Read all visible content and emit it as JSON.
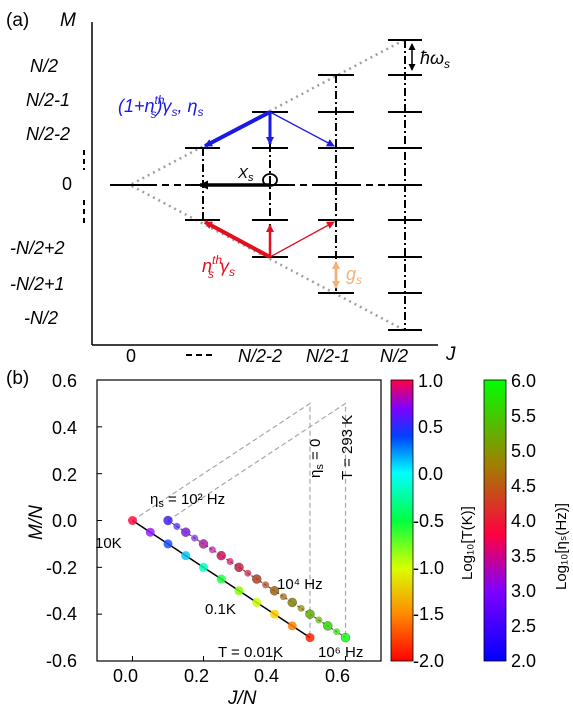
{
  "panel_a": {
    "label": "(a)",
    "y_axis_label": "M",
    "x_axis_label": "J",
    "y_tick_labels": [
      "N/2",
      "N/2-1",
      "N/2-2",
      "0",
      "-N/2+2",
      "-N/2+1",
      "-N/2"
    ],
    "x_tick_labels": [
      "0",
      "N/2-2",
      "N/2-1",
      "N/2"
    ],
    "annotations": {
      "hbar_omega": "ħω",
      "hbar_omega_sub": "s",
      "decay_up_prefix": "(1+n",
      "decay_up_sup": "th",
      "decay_up_sub": "s",
      "decay_up_suffix": ")γ",
      "decay_up_sub2": "s",
      "eta": ", η",
      "eta_sub": "s",
      "chi": "X",
      "chi_sub": "s",
      "pump_prefix": "n",
      "pump_sup": "th",
      "pump_sub": "s",
      "pump_suffix": "γ",
      "pump_sub2": "s",
      "g": "g",
      "g_sub": "s"
    },
    "colors": {
      "blue": "#1a1ae6",
      "red": "#e0101e",
      "orange": "#f2b27a",
      "dotted": "#a0a0a0"
    }
  },
  "panel_b": {
    "label": "(b)",
    "xlabel": "J/N",
    "ylabel": "M/N",
    "x_ticks": [
      "0.0",
      "0.2",
      "0.4",
      "0.6"
    ],
    "y_ticks": [
      "0.6",
      "0.4",
      "0.2",
      "0.0",
      "-0.2",
      "-0.4",
      "-0.6"
    ],
    "annotations": {
      "eta_label": "η",
      "eta_sub": "s",
      "eta_value": " = 10² Hz",
      "t10k": "10K",
      "t01k": "0.1K",
      "t001k": "T = 0.01K",
      "e4": "10⁴ Hz",
      "e6": "10⁶ Hz",
      "eta0": "η",
      "eta0_sub": "s",
      "eta0_suffix": " = 0",
      "t293": "T = 293 K"
    },
    "colorbar_T": {
      "label": "Log₁₀[T(K)]",
      "ticks": [
        "1.0",
        "0.5",
        "0.0",
        "-0.5",
        "-1.0",
        "-1.5",
        "-2.0"
      ]
    },
    "colorbar_eta": {
      "label": "Log₁₀[ηₛ(Hz)]",
      "ticks": [
        "6.0",
        "5.5",
        "5.0",
        "4.5",
        "4.0",
        "3.5",
        "3.0",
        "2.5",
        "2.0"
      ]
    }
  },
  "chart_data": {
    "type": "scatter",
    "xlabel": "J/N",
    "ylabel": "M/N",
    "xlim": [
      -0.1,
      0.7
    ],
    "ylim": [
      -0.6,
      0.6
    ],
    "series": [
      {
        "x": [
          0.0,
          0.05,
          0.1,
          0.15,
          0.2,
          0.25,
          0.3,
          0.35,
          0.4,
          0.45,
          0.5
        ],
        "y": [
          0.0,
          -0.05,
          -0.1,
          -0.15,
          -0.2,
          -0.25,
          -0.3,
          -0.35,
          -0.4,
          -0.45,
          -0.5
        ]
      },
      {
        "x": [
          0.1,
          0.15,
          0.2,
          0.25,
          0.3,
          0.35,
          0.4,
          0.45,
          0.5,
          0.55,
          0.6
        ],
        "y": [
          0.0,
          -0.05,
          -0.1,
          -0.15,
          -0.2,
          -0.25,
          -0.3,
          -0.35,
          -0.4,
          -0.45,
          -0.5
        ]
      }
    ]
  }
}
